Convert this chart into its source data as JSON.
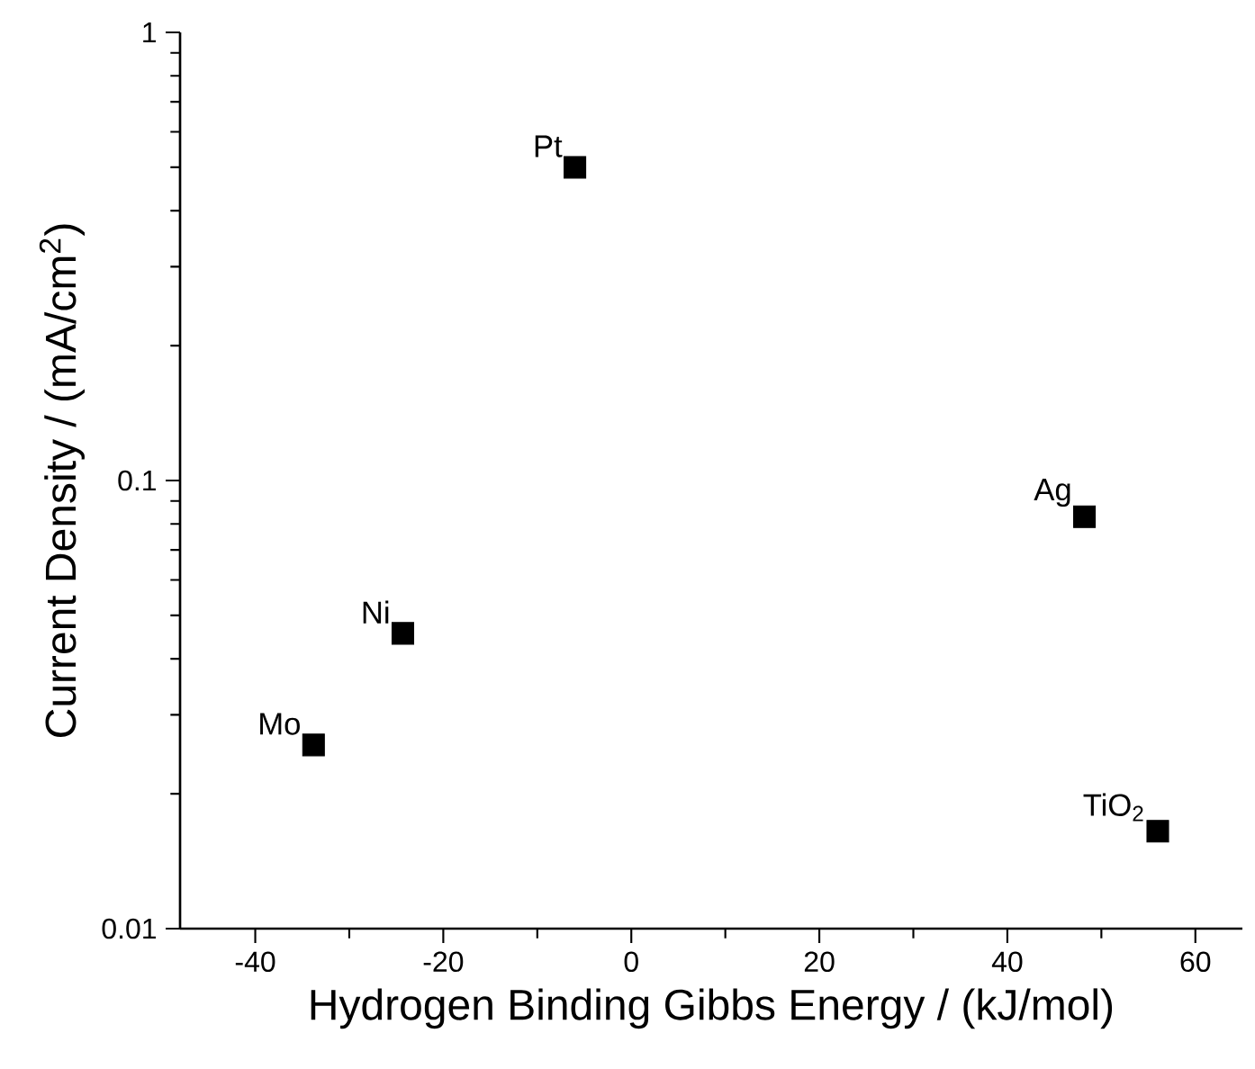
{
  "chart_data": {
    "type": "scatter",
    "xlabel": "Hydrogen Binding Gibbs Energy / (kJ/mol)",
    "ylabel": "Current Density / (mA/cm$^{2}$)",
    "x": [
      -6,
      48.2,
      -24.3,
      -33.8,
      56.0
    ],
    "series": [
      {
        "color": "#000000",
        "values": [
          0.5,
          0.083,
          0.0456,
          0.0257,
          0.0165
        ]
      }
    ],
    "marker": "square",
    "log": "y",
    "grid": false,
    "xlim": [
      -48,
      65
    ],
    "ylim": [
      0.01,
      1
    ],
    "xticks": [
      -40,
      -20,
      0,
      20,
      40,
      60
    ],
    "yticks": [
      0.01,
      0.1,
      1
    ],
    "annotations": [
      {
        "text": "Pt",
        "x": -6,
        "y": 0.5
      },
      {
        "text": "Ag",
        "x": 48.2,
        "y": 0.083
      },
      {
        "text": "Ni",
        "x": -24.3,
        "y": 0.0456
      },
      {
        "text": "Mo",
        "x": -33.8,
        "y": 0.0257
      },
      {
        "text": "TiO$_{2}$",
        "x": 56.0,
        "y": 0.0165
      }
    ]
  }
}
